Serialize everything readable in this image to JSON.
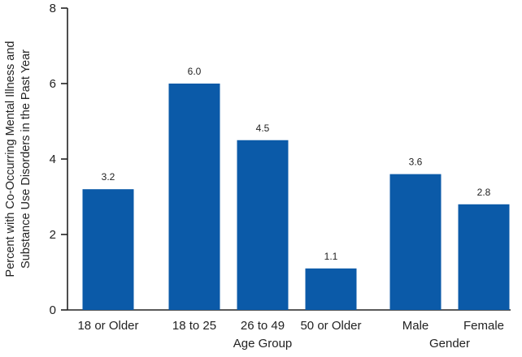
{
  "chart_data": {
    "type": "bar",
    "categories": [
      "18 or Older",
      "18 to 25",
      "26 to 49",
      "50 or Older",
      "Male",
      "Female"
    ],
    "values": [
      3.2,
      6.0,
      4.5,
      1.1,
      3.6,
      2.8
    ],
    "value_labels": [
      "3.2",
      "6.0",
      "4.5",
      "1.1",
      "3.6",
      "2.8"
    ],
    "ylim": [
      0,
      8
    ],
    "yticks": [
      0,
      2,
      4,
      6,
      8
    ],
    "ylabel_lines": [
      "Percent with Co-Occurring Mental Illness and",
      "Substance Use Disorders in the Past Year"
    ],
    "groups": [
      {
        "label": "Age Group",
        "categories": [
          "18 to 25",
          "26 to 49",
          "50 or Older"
        ]
      },
      {
        "label": "Gender",
        "categories": [
          "Male",
          "Female"
        ]
      }
    ],
    "bar_color": "#0b5aa8",
    "grid": false,
    "legend": "none"
  }
}
